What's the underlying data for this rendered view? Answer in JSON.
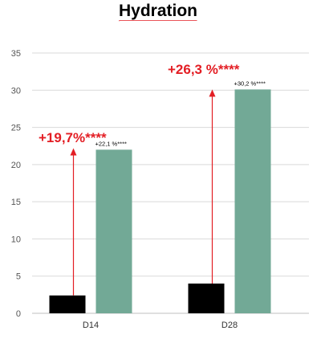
{
  "chart_data": {
    "type": "bar",
    "title": "Hydration",
    "categories": [
      "D14",
      "D28"
    ],
    "series": [
      {
        "values": [
          2.4,
          4.0
        ],
        "color": "#000000"
      },
      {
        "values": [
          22.0,
          30.1
        ],
        "color": "#72a996"
      }
    ],
    "ylim": [
      0,
      35
    ],
    "yticks": [
      0,
      5,
      10,
      15,
      20,
      25,
      30,
      35
    ],
    "grid": true,
    "annotations": [
      {
        "category": "D14",
        "main": "+19,7%****",
        "secondary": "+22,1 %****"
      },
      {
        "category": "D28",
        "main": "+26,3 %****",
        "secondary": "+30,2 %****"
      }
    ],
    "accent_color": "#e31e24",
    "gridline_color": "#d9d9d9"
  }
}
